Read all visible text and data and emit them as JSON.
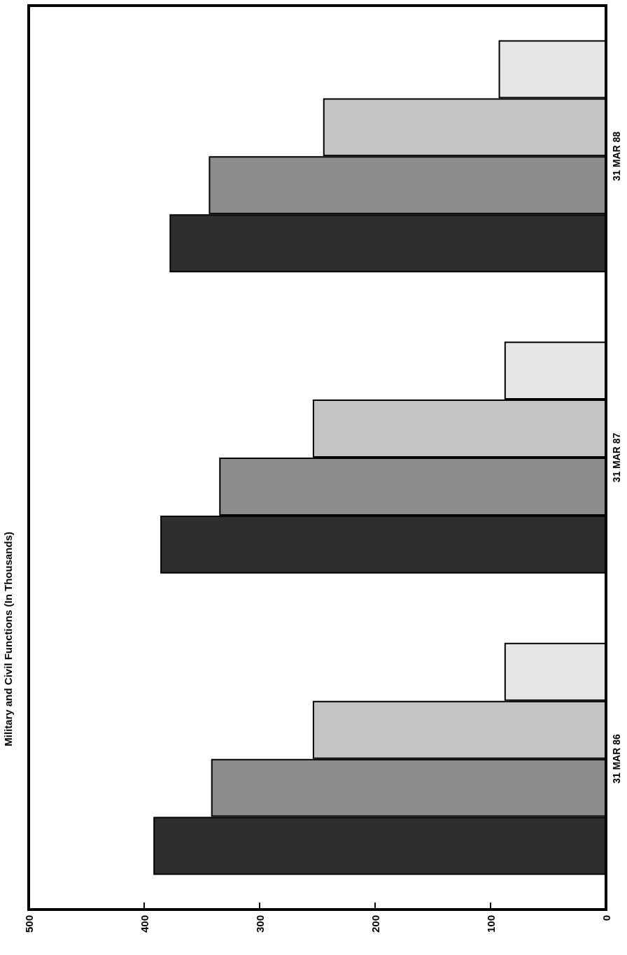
{
  "chart_data": {
    "type": "bar",
    "orientation": "horizontal",
    "title": "Military and Civil Functions (In Thousands)",
    "categories": [
      "31 MAR 88",
      "31 MAR 87",
      "31 MAR 86"
    ],
    "series": [
      {
        "color": "#e6e6e6",
        "values": [
          93,
          88,
          88
        ]
      },
      {
        "color": "#c4c4c4",
        "values": [
          245,
          254,
          254
        ]
      },
      {
        "color": "#8c8c8c",
        "values": [
          344,
          335,
          342
        ]
      },
      {
        "color": "#2e2e2e",
        "values": [
          378,
          386,
          392
        ]
      }
    ],
    "xlim": [
      500,
      0
    ],
    "xticks": [
      0,
      100,
      200,
      300,
      400,
      500
    ],
    "grid": false
  }
}
